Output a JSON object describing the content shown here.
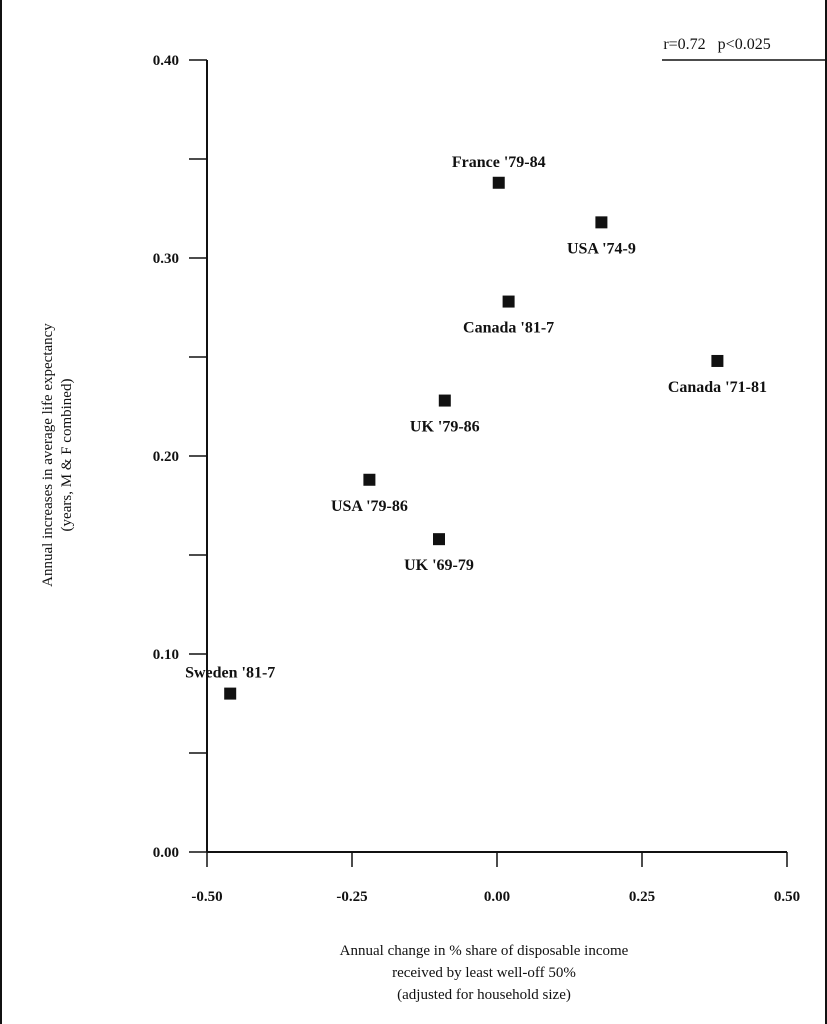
{
  "chart_data": {
    "type": "scatter",
    "annotation": "r=0.72   p<0.025",
    "xlabel": [
      "Annual change in % share of disposable income",
      "received by least well-off 50%",
      "(adjusted for household size)"
    ],
    "ylabel": [
      "Annual increases in average life expectancy",
      "(years, M & F combined)"
    ],
    "xlim": [
      -0.5,
      0.5
    ],
    "ylim": [
      0.0,
      0.4
    ],
    "xticks": [
      -0.5,
      -0.25,
      0.0,
      0.25,
      0.5
    ],
    "xtick_labels": [
      "-0.50",
      "-0.25",
      "0.00",
      "0.25",
      "0.50"
    ],
    "yticks": [
      0.0,
      0.05,
      0.1,
      0.15,
      0.2,
      0.25,
      0.3,
      0.35,
      0.4
    ],
    "ytick_labels": [
      "0.00",
      "",
      "0.10",
      "",
      "0.20",
      "",
      "0.30",
      "",
      "0.40"
    ],
    "points": [
      {
        "label": "France '79-84",
        "x": 0.003,
        "y": 0.338,
        "label_pos": "above"
      },
      {
        "label": "USA '74-9",
        "x": 0.18,
        "y": 0.318,
        "label_pos": "below"
      },
      {
        "label": "Canada '81-7",
        "x": 0.02,
        "y": 0.278,
        "label_pos": "below"
      },
      {
        "label": "Canada '71-81",
        "x": 0.38,
        "y": 0.248,
        "label_pos": "below"
      },
      {
        "label": "UK '79-86",
        "x": -0.09,
        "y": 0.228,
        "label_pos": "below"
      },
      {
        "label": "USA '79-86",
        "x": -0.22,
        "y": 0.188,
        "label_pos": "below"
      },
      {
        "label": "UK '69-79",
        "x": -0.1,
        "y": 0.158,
        "label_pos": "below"
      },
      {
        "label": "Sweden '81-7",
        "x": -0.46,
        "y": 0.08,
        "label_pos": "above"
      }
    ]
  }
}
